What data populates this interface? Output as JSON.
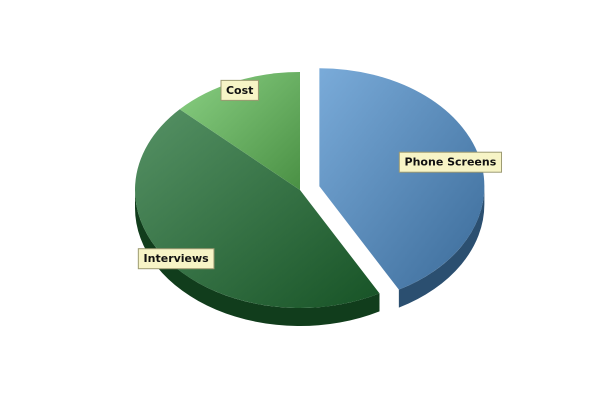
{
  "chart_data": {
    "type": "pie",
    "title": "",
    "slices": [
      {
        "label": "Phone Screens",
        "value": 42,
        "color": "#4e8fcc",
        "exploded": true
      },
      {
        "label": "Interviews",
        "value": 45,
        "color": "#1e6e32",
        "exploded": false
      },
      {
        "label": "Cost",
        "value": 13,
        "color": "#63c05a",
        "exploded": false
      }
    ],
    "legend": "none",
    "style": "3d"
  }
}
